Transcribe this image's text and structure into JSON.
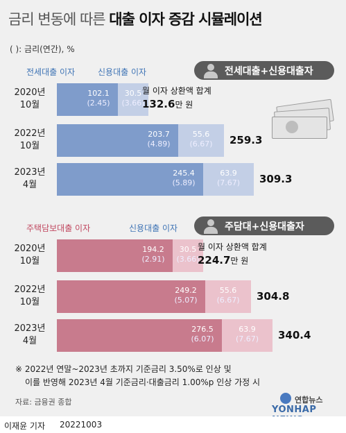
{
  "title": {
    "light": "금리 변동에 따른",
    "bold": "대출 이자 증감 시뮬레이션"
  },
  "unit_note": "( ): 금리(연간), %",
  "colors": {
    "blue": "#7f9ccb",
    "light_blue": "#c3cfe6",
    "pink": "#c87b8d",
    "light_pink": "#ebc2cc",
    "pill": "#5b5b5b"
  },
  "sections": [
    {
      "pill_label": "전세대출+신용대출자",
      "legend_primary": "전세대출 이자",
      "legend_secondary": "신용대출 이자",
      "legend_primary_color": "#3f74b5",
      "legend_secondary_color": "#3f74b5",
      "total_note_prefix": "월 이자 상환액 합계",
      "total_note_suffix": "만 원",
      "rows": [
        {
          "label1": "2020년",
          "label2": "10월",
          "primary": "102.1",
          "primary_rate": "(2.45)",
          "secondary": "30.5",
          "secondary_rate": "(3.66)",
          "total": "132.6"
        },
        {
          "label1": "2022년",
          "label2": "10월",
          "primary": "203.7",
          "primary_rate": "(4.89)",
          "secondary": "55.6",
          "secondary_rate": "(6.67)",
          "total": "259.3"
        },
        {
          "label1": "2023년",
          "label2": "4월",
          "primary": "245.4",
          "primary_rate": "(5.89)",
          "secondary": "63.9",
          "secondary_rate": "(7.67)",
          "total": "309.3"
        }
      ]
    },
    {
      "pill_label": "주담대+신용대출자",
      "legend_primary": "주택담보대출 이자",
      "legend_secondary": "신용대출 이자",
      "legend_primary_color": "#c0475f",
      "legend_secondary_color": "#3f74b5",
      "total_note_prefix": "월 이자 상환액 합계",
      "total_note_suffix": "만 원",
      "rows": [
        {
          "label1": "2020년",
          "label2": "10월",
          "primary": "194.2",
          "primary_rate": "(2.91)",
          "secondary": "30.5",
          "secondary_rate": "(3.66)",
          "total": "224.7"
        },
        {
          "label1": "2022년",
          "label2": "10월",
          "primary": "249.2",
          "primary_rate": "(5.07)",
          "secondary": "55.6",
          "secondary_rate": "(6.67)",
          "total": "304.8"
        },
        {
          "label1": "2023년",
          "label2": "4월",
          "primary": "276.5",
          "primary_rate": "(6.07)",
          "secondary": "63.9",
          "secondary_rate": "(7.67)",
          "total": "340.4"
        }
      ]
    }
  ],
  "footnote_line1": "※ 2022년 연말~2023년 초까지 기준금리 3.50%로 인상 및",
  "footnote_line2": "이를 반영해 2023년 4월 기준금리·대출금리 1.00%p 인상 가정 시",
  "source": "자료: 금융권 종합",
  "logo_kr": "연합뉴스",
  "logo_en": "YONHAP NEWS",
  "reporter": "이재윤 기자",
  "date": "20221003",
  "chart_data": [
    {
      "type": "bar",
      "stacked": true,
      "orientation": "horizontal",
      "title": "전세대출+신용대출자",
      "categories": [
        "2020년 10월",
        "2022년 10월",
        "2023년 4월"
      ],
      "series": [
        {
          "name": "전세대출 이자",
          "values": [
            102.1,
            203.7,
            245.4
          ],
          "rates": [
            2.45,
            4.89,
            5.89
          ]
        },
        {
          "name": "신용대출 이자",
          "values": [
            30.5,
            55.6,
            63.9
          ],
          "rates": [
            3.66,
            6.67,
            7.67
          ]
        }
      ],
      "totals": [
        132.6,
        259.3,
        309.3
      ]
    },
    {
      "type": "bar",
      "stacked": true,
      "orientation": "horizontal",
      "title": "주담대+신용대출자",
      "categories": [
        "2020년 10월",
        "2022년 10월",
        "2023년 4월"
      ],
      "series": [
        {
          "name": "주택담보대출 이자",
          "values": [
            194.2,
            249.2,
            276.5
          ],
          "rates": [
            2.91,
            5.07,
            6.07
          ]
        },
        {
          "name": "신용대출 이자",
          "values": [
            30.5,
            55.6,
            63.9
          ],
          "rates": [
            3.66,
            6.67,
            7.67
          ]
        }
      ],
      "totals": [
        224.7,
        304.8,
        340.4
      ]
    }
  ]
}
